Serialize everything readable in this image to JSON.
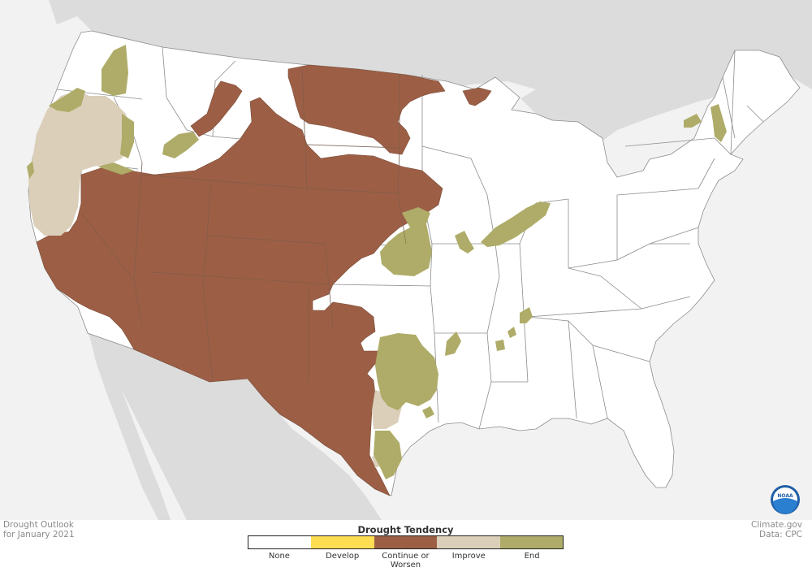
{
  "colors": {
    "ocean": "#f2f2f2",
    "foreign_land": "#dcdcdc",
    "us_land": "#ffffff",
    "state_border": "#8c8c8c",
    "continue": "#9c5f46",
    "continue_border": "#7a4a34",
    "improve": "#dbcfba",
    "end": "#aeac68",
    "develop": "#fddd52"
  },
  "title": {
    "line1": "Drought Outlook",
    "line2": "for January 2021"
  },
  "credit": {
    "line1": "Climate.gov",
    "line2": "Data: CPC"
  },
  "legend": {
    "title": "Drought Tendency",
    "items": [
      {
        "label": "None",
        "label2": "",
        "color": "#ffffff"
      },
      {
        "label": "Develop",
        "label2": "",
        "color": "#fddd52"
      },
      {
        "label": "Continue or",
        "label2": "Worsen",
        "color": "#9c5f46"
      },
      {
        "label": "Improve",
        "label2": "",
        "color": "#dbcfba"
      },
      {
        "label": "End",
        "label2": "",
        "color": "#aeac68"
      }
    ]
  },
  "logo": {
    "text": "NOAA",
    "icon": "noaa-logo-icon"
  }
}
